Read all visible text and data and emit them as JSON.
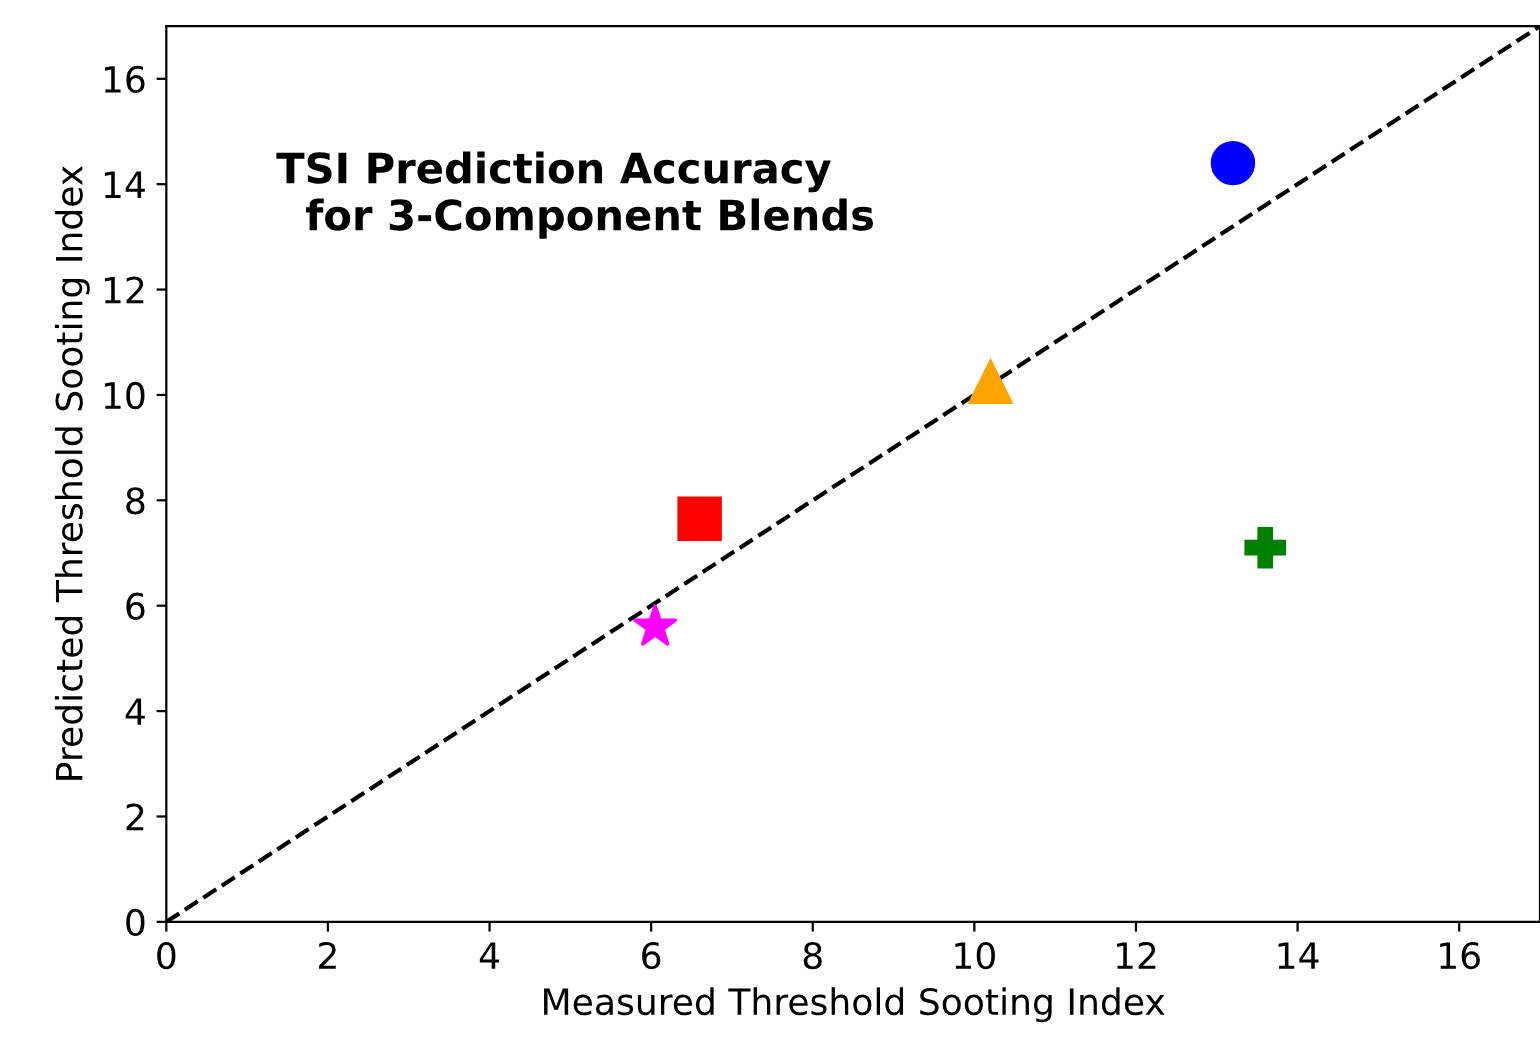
{
  "chart_data": {
    "type": "scatter",
    "xlabel": "Measured Threshold Sooting Index",
    "ylabel": "Predicted Threshold Sooting Index",
    "annotations": [
      "TSI Prediction Accuracy\n  for 3-Component Blends"
    ],
    "xlim": [
      0,
      17
    ],
    "ylim": [
      0,
      17
    ],
    "xticks": [
      0,
      2,
      4,
      6,
      8,
      10,
      12,
      14,
      16
    ],
    "yticks": [
      0,
      2,
      4,
      6,
      8,
      10,
      12,
      14,
      16
    ],
    "grid": false,
    "series": [
      {
        "type": "line",
        "x": [
          0,
          17
        ],
        "values": [
          0,
          17
        ],
        "color": "#000000",
        "line_style": "dashed",
        "marker": "none"
      },
      {
        "x": [
          13.2
        ],
        "values": [
          14.4
        ],
        "color": "#0000ff",
        "marker": "circle"
      },
      {
        "x": [
          10.2
        ],
        "values": [
          10.25
        ],
        "color": "#ffa500",
        "marker": "triangle"
      },
      {
        "x": [
          6.6
        ],
        "values": [
          7.65
        ],
        "color": "#ff0000",
        "marker": "square"
      },
      {
        "x": [
          6.05
        ],
        "values": [
          5.6
        ],
        "color": "#ff00ff",
        "marker": "star"
      },
      {
        "x": [
          13.6
        ],
        "values": [
          7.1
        ],
        "color": "#008000",
        "marker": "cross"
      }
    ]
  }
}
